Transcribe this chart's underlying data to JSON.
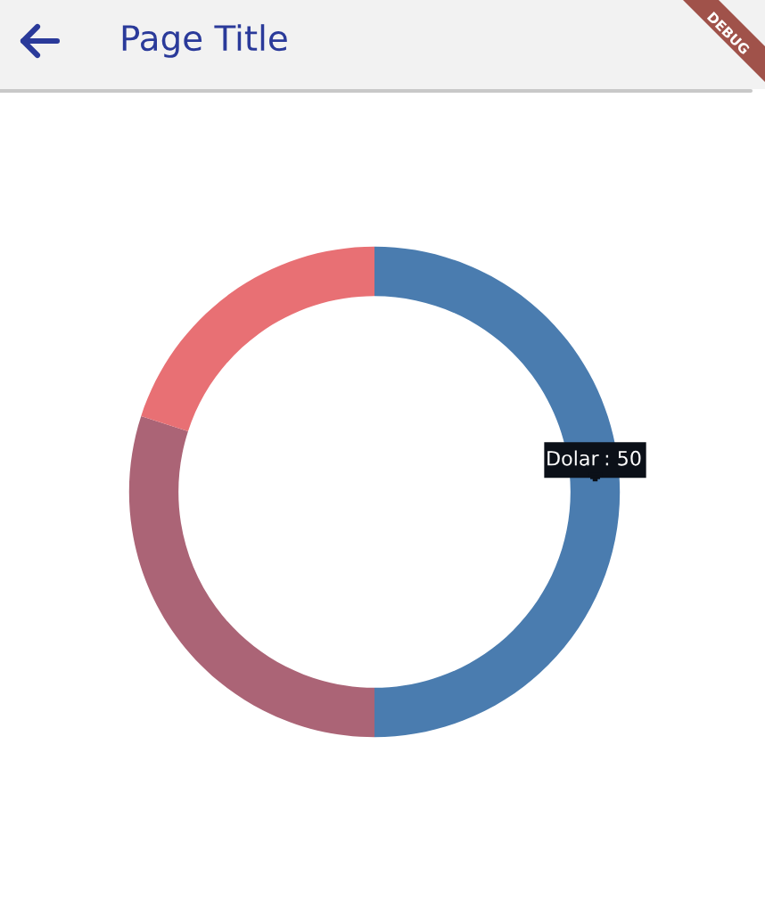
{
  "chart_data": {
    "type": "donut",
    "title": "Page Title",
    "categories": [
      "Dolar",
      null,
      null
    ],
    "values": [
      50,
      30,
      20
    ],
    "colors": [
      "#4a7caf",
      "#ab6476",
      "#e87074"
    ],
    "value_labels": [
      ": 50",
      null,
      null
    ],
    "annotations": [
      "DEBUG"
    ]
  }
}
